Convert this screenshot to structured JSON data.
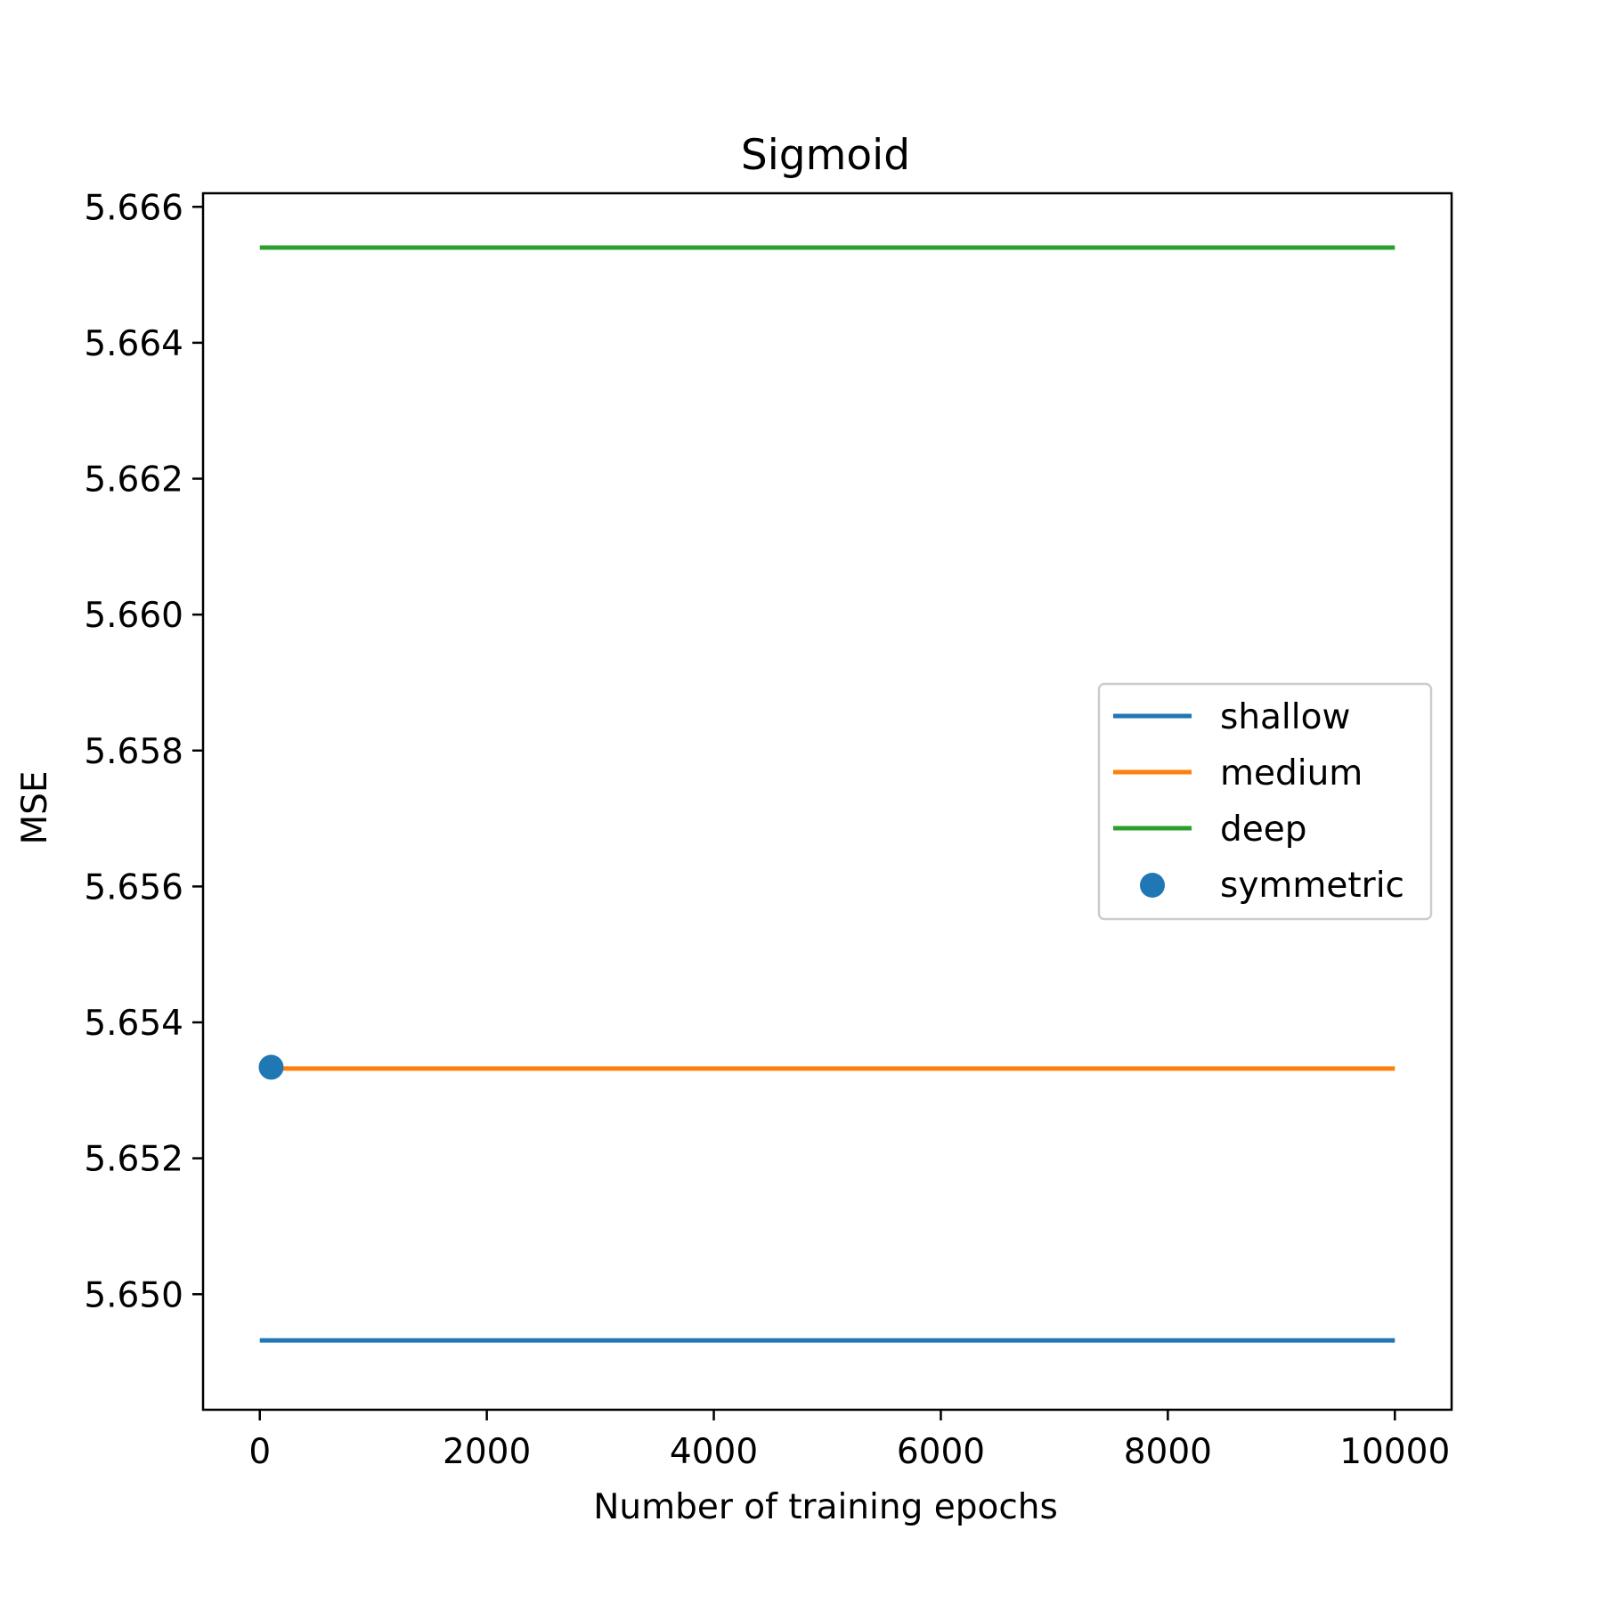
{
  "chart_data": {
    "type": "line",
    "title": "Sigmoid",
    "xlabel": "Number of training epochs",
    "ylabel": "MSE",
    "xlim": [
      -500,
      10500
    ],
    "ylim": [
      5.6483,
      5.6662
    ],
    "xticks": [
      0,
      2000,
      4000,
      6000,
      8000,
      10000
    ],
    "xtick_labels": [
      "0",
      "2000",
      "4000",
      "6000",
      "8000",
      "10000"
    ],
    "yticks": [
      5.65,
      5.652,
      5.654,
      5.656,
      5.658,
      5.66,
      5.662,
      5.664,
      5.666
    ],
    "ytick_labels": [
      "5.650",
      "5.652",
      "5.654",
      "5.656",
      "5.658",
      "5.660",
      "5.662",
      "5.664",
      "5.666"
    ],
    "grid": false,
    "legend_position": "center-right",
    "series": [
      {
        "name": "shallow",
        "kind": "line",
        "color": "#1f77b4",
        "x": [
          0,
          10000
        ],
        "y": [
          5.64932,
          5.64932
        ]
      },
      {
        "name": "medium",
        "kind": "line",
        "color": "#ff7f0e",
        "x": [
          0,
          10000
        ],
        "y": [
          5.65332,
          5.65332
        ]
      },
      {
        "name": "deep",
        "kind": "line",
        "color": "#2ca02c",
        "x": [
          0,
          10000
        ],
        "y": [
          5.6654,
          5.6654
        ]
      },
      {
        "name": "symmetric",
        "kind": "scatter",
        "color": "#1f77b4",
        "x": [
          100
        ],
        "y": [
          5.65334
        ]
      }
    ]
  }
}
